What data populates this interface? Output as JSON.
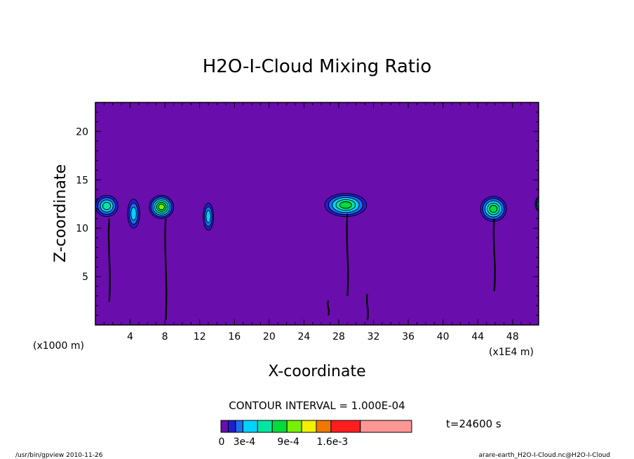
{
  "chart_data": {
    "type": "heatmap",
    "title": "H2O-I-Cloud Mixing Ratio",
    "xlabel": "X-coordinate",
    "ylabel": "Z-coordinate",
    "x_scale_note_left": "(x1000 m)",
    "x_scale_note_right": "(x1E4 m)",
    "xlim": [
      0,
      51
    ],
    "ylim": [
      0,
      23
    ],
    "x_ticks": [
      4,
      8,
      12,
      16,
      20,
      24,
      28,
      32,
      36,
      40,
      44,
      48
    ],
    "y_ticks": [
      5,
      10,
      15,
      20
    ],
    "background_level_color": "#6a0dad",
    "contour_interval_label": "CONTOUR INTERVAL = 1.000E-04",
    "time_label": "t=24600 s",
    "colorbar": {
      "labels": [
        "0",
        "3e-4",
        "9e-4",
        "1.6e-3"
      ],
      "colors": [
        "#6a0dad",
        "#1e1ed2",
        "#1e6ef0",
        "#00d2ff",
        "#00e6a0",
        "#00dc3c",
        "#78f000",
        "#f0f000",
        "#f07800",
        "#ff1e1e",
        "#ff9696"
      ],
      "widths": [
        1,
        1,
        1,
        2,
        2,
        2,
        2,
        2,
        2,
        4,
        7
      ]
    },
    "clouds": [
      {
        "x": 1.3,
        "z": 12.3,
        "rx": 1.3,
        "rz": 1.1,
        "level": 4,
        "stem": true
      },
      {
        "x": 4.4,
        "z": 11.5,
        "rx": 0.7,
        "rz": 1.5,
        "level": 3,
        "stem": false
      },
      {
        "x": 7.6,
        "z": 12.2,
        "rx": 1.4,
        "rz": 1.2,
        "level": 6,
        "stem": true
      },
      {
        "x": 13.0,
        "z": 11.2,
        "rx": 0.6,
        "rz": 1.4,
        "level": 3,
        "stem": false
      },
      {
        "x": 28.8,
        "z": 12.4,
        "rx": 2.4,
        "rz": 1.2,
        "level": 5,
        "stem": true
      },
      {
        "x": 45.8,
        "z": 12.0,
        "rx": 1.5,
        "rz": 1.3,
        "level": 5,
        "stem": true
      },
      {
        "x": 51.0,
        "z": 12.5,
        "rx": 0.4,
        "rz": 0.7,
        "level": 4,
        "stem": false
      }
    ],
    "stems": [
      {
        "x": 1.6,
        "z_top": 11.0,
        "z_bottom": 2.4
      },
      {
        "x": 8.1,
        "z_top": 11.0,
        "z_bottom": 0.5
      },
      {
        "x": 29.0,
        "z_top": 11.5,
        "z_bottom": 3.0
      },
      {
        "x": 45.9,
        "z_top": 11.0,
        "z_bottom": 3.5
      },
      {
        "x": 31.3,
        "z_top": 3.2,
        "z_bottom": 0.5
      },
      {
        "x": 26.8,
        "z_top": 2.5,
        "z_bottom": 1.0
      }
    ]
  },
  "footer": {
    "left": "/usr/bin/gpview  2010-11-26",
    "right": "arare-earth_H2O-I-Cloud.nc@H2O-I-Cloud"
  }
}
